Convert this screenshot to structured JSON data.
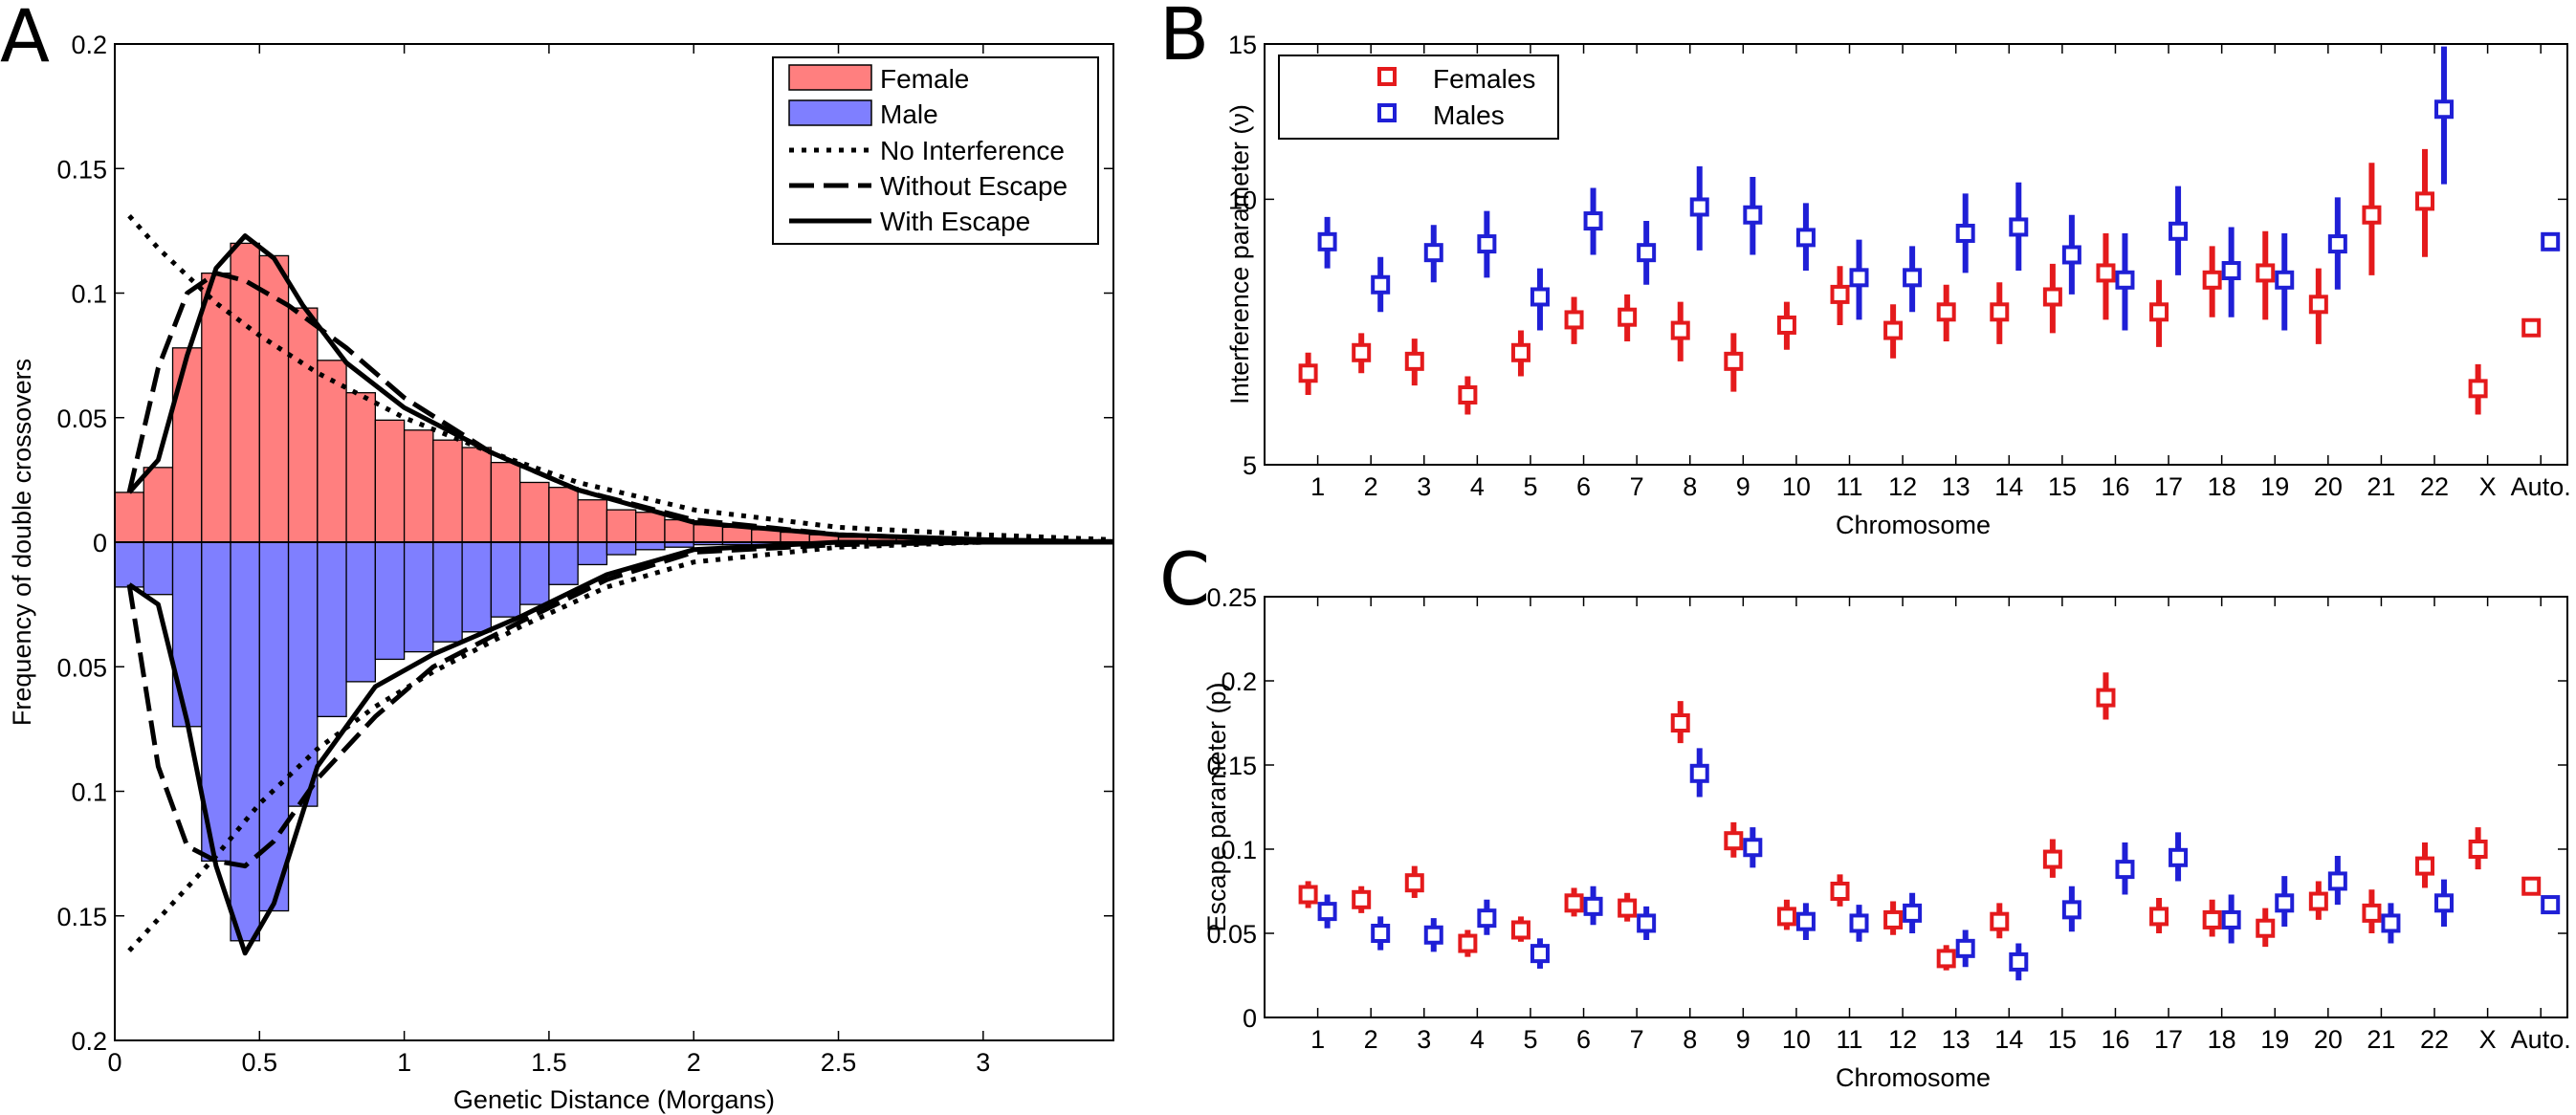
{
  "figure": {
    "panel_letters": [
      "A",
      "B",
      "C"
    ]
  },
  "chart_data": [
    {
      "panel": "A",
      "type": "bar",
      "xlabel": "Genetic Distance (Morgans)",
      "ylabel": "Frequency of double crossovers",
      "xlim": [
        0,
        3.45
      ],
      "ylim": [
        -0.2,
        0.2
      ],
      "xticks": [
        0,
        0.5,
        1,
        1.5,
        2,
        2.5,
        3
      ],
      "xtick_labels": [
        "0",
        "0.5",
        "1",
        "1.5",
        "2",
        "2.5",
        "3"
      ],
      "yticks": [
        0.2,
        0.15,
        0.1,
        0.05,
        0,
        -0.05,
        -0.1,
        -0.15,
        -0.2
      ],
      "ytick_labels": [
        "0.2",
        "0.15",
        "0.1",
        "0.05",
        "0",
        "0.05",
        "0.1",
        "0.15",
        "0.2"
      ],
      "grid": false,
      "legend_position": "top-right",
      "legend": [
        {
          "label": "Female",
          "kind": "patch",
          "color": "#ff7f7f"
        },
        {
          "label": "Male",
          "kind": "patch",
          "color": "#7f7fff"
        },
        {
          "label": "No Interference",
          "kind": "dotted"
        },
        {
          "label": "Without Escape",
          "kind": "dashed"
        },
        {
          "label": "With Escape",
          "kind": "solid"
        }
      ],
      "bin_width": 0.1,
      "bin_starts": [
        0,
        0.1,
        0.2,
        0.3,
        0.4,
        0.5,
        0.6,
        0.7,
        0.8,
        0.9,
        1.0,
        1.1,
        1.2,
        1.3,
        1.4,
        1.5,
        1.6,
        1.7,
        1.8,
        1.9,
        2.0,
        2.1,
        2.2,
        2.3,
        2.4,
        2.5,
        2.6,
        2.7,
        2.8,
        2.9,
        3.0,
        3.1,
        3.2,
        3.3,
        3.4
      ],
      "female_values": [
        0.02,
        0.03,
        0.078,
        0.108,
        0.12,
        0.115,
        0.094,
        0.073,
        0.06,
        0.049,
        0.045,
        0.041,
        0.038,
        0.032,
        0.024,
        0.022,
        0.017,
        0.013,
        0.012,
        0.009,
        0.007,
        0.006,
        0.005,
        0.004,
        0.003,
        0.002,
        0.002,
        0.002,
        0.001,
        0.001,
        0.001,
        0.001,
        0.001,
        0.001,
        0.001
      ],
      "male_values": [
        -0.018,
        -0.021,
        -0.074,
        -0.128,
        -0.16,
        -0.148,
        -0.106,
        -0.07,
        -0.056,
        -0.047,
        -0.044,
        -0.04,
        -0.036,
        -0.03,
        -0.025,
        -0.017,
        -0.009,
        -0.005,
        -0.003,
        -0.002,
        -0.001,
        -0.001,
        -0.001,
        0,
        0,
        0,
        0,
        0,
        0,
        0,
        0,
        0,
        0,
        0,
        0
      ],
      "curves": {
        "female_no_interference": {
          "x": [
            0.05,
            0.15,
            0.25,
            0.35,
            0.5,
            0.7,
            1.0,
            1.3,
            1.6,
            2.0,
            2.5,
            3.0,
            3.45
          ],
          "y": [
            0.131,
            0.118,
            0.107,
            0.096,
            0.083,
            0.068,
            0.05,
            0.036,
            0.024,
            0.013,
            0.006,
            0.003,
            0.001
          ]
        },
        "female_without_escape": {
          "x": [
            0.05,
            0.15,
            0.25,
            0.35,
            0.45,
            0.6,
            0.8,
            1.0,
            1.3,
            1.6,
            2.0,
            2.5,
            3.0,
            3.45
          ],
          "y": [
            0.02,
            0.07,
            0.1,
            0.108,
            0.105,
            0.095,
            0.078,
            0.058,
            0.036,
            0.021,
            0.009,
            0.003,
            0.001,
            0
          ]
        },
        "female_with_escape": {
          "x": [
            0.05,
            0.15,
            0.25,
            0.35,
            0.45,
            0.55,
            0.65,
            0.8,
            1.0,
            1.3,
            1.6,
            2.0,
            2.5,
            3.0,
            3.45
          ],
          "y": [
            0.02,
            0.033,
            0.075,
            0.11,
            0.123,
            0.114,
            0.095,
            0.072,
            0.054,
            0.036,
            0.021,
            0.008,
            0.003,
            0.001,
            0
          ]
        },
        "male_no_interference": {
          "x": [
            0.05,
            0.2,
            0.35,
            0.5,
            0.7,
            0.9,
            1.1,
            1.4,
            1.7,
            2.0,
            2.5,
            3.0,
            3.45
          ],
          "y": [
            -0.164,
            -0.145,
            -0.126,
            -0.105,
            -0.083,
            -0.066,
            -0.052,
            -0.034,
            -0.018,
            -0.008,
            -0.002,
            0,
            0
          ]
        },
        "male_without_escape": {
          "x": [
            0.05,
            0.15,
            0.25,
            0.35,
            0.45,
            0.55,
            0.7,
            0.9,
            1.1,
            1.4,
            1.7,
            2.0,
            2.5,
            3.0,
            3.45
          ],
          "y": [
            -0.017,
            -0.09,
            -0.122,
            -0.128,
            -0.13,
            -0.12,
            -0.095,
            -0.07,
            -0.05,
            -0.032,
            -0.015,
            -0.004,
            -0.001,
            0,
            0
          ]
        },
        "male_with_escape": {
          "x": [
            0.05,
            0.15,
            0.25,
            0.35,
            0.45,
            0.55,
            0.7,
            0.9,
            1.1,
            1.4,
            1.7,
            2.0,
            2.5,
            3.0,
            3.45
          ],
          "y": [
            -0.017,
            -0.025,
            -0.072,
            -0.13,
            -0.165,
            -0.145,
            -0.09,
            -0.058,
            -0.045,
            -0.03,
            -0.013,
            -0.003,
            0,
            0,
            0
          ]
        }
      }
    },
    {
      "panel": "B",
      "type": "scatter",
      "xlabel": "Chromosome",
      "ylabel": "Interference parameter (ν)",
      "yscale": "log",
      "ylim": [
        5,
        15
      ],
      "yticks": [
        5,
        10,
        15
      ],
      "ytick_labels": [
        "5",
        "10",
        "15"
      ],
      "categories": [
        "1",
        "2",
        "3",
        "4",
        "5",
        "6",
        "7",
        "8",
        "9",
        "10",
        "11",
        "12",
        "13",
        "14",
        "15",
        "16",
        "17",
        "18",
        "19",
        "20",
        "21",
        "22",
        "X",
        "Auto."
      ],
      "grid": false,
      "legend_position": "top-left",
      "series": [
        {
          "name": "Females",
          "color": "#e41a1c",
          "values": [
            6.35,
            6.7,
            6.55,
            6.0,
            6.7,
            7.3,
            7.35,
            7.1,
            6.55,
            7.2,
            7.8,
            7.1,
            7.45,
            7.45,
            7.75,
            8.25,
            7.45,
            8.1,
            8.25,
            7.6,
            9.6,
            9.95,
            6.1,
            7.15
          ],
          "lower": [
            6.0,
            6.35,
            6.15,
            5.7,
            6.3,
            6.85,
            6.9,
            6.55,
            6.05,
            6.75,
            7.2,
            6.6,
            6.9,
            6.85,
            7.05,
            7.3,
            6.8,
            7.35,
            7.3,
            6.85,
            8.2,
            8.6,
            5.7,
            7.0
          ],
          "upper": [
            6.7,
            7.05,
            6.95,
            6.3,
            7.1,
            7.75,
            7.8,
            7.65,
            7.05,
            7.65,
            8.4,
            7.6,
            8.0,
            8.05,
            8.45,
            9.15,
            8.1,
            8.85,
            9.2,
            8.35,
            11.0,
            11.4,
            6.5,
            7.3
          ]
        },
        {
          "name": "Males",
          "color": "#1f1fd6",
          "values": [
            8.95,
            8.0,
            8.7,
            8.9,
            7.75,
            9.45,
            8.7,
            9.8,
            9.6,
            9.05,
            8.15,
            8.15,
            9.15,
            9.3,
            8.65,
            8.1,
            9.2,
            8.3,
            8.1,
            8.9,
            null,
            12.65,
            null,
            8.95
          ],
          "lower": [
            8.35,
            7.45,
            8.05,
            8.15,
            7.1,
            8.65,
            8.0,
            8.75,
            8.65,
            8.3,
            7.3,
            7.45,
            8.25,
            8.3,
            7.8,
            7.1,
            8.2,
            7.35,
            7.1,
            7.9,
            null,
            10.4,
            null,
            8.8
          ],
          "upper": [
            9.55,
            8.6,
            9.35,
            9.7,
            8.35,
            10.3,
            9.45,
            10.9,
            10.6,
            9.9,
            9.0,
            8.85,
            10.15,
            10.45,
            9.6,
            9.15,
            10.35,
            9.3,
            9.15,
            10.05,
            null,
            14.9,
            null,
            9.1
          ]
        }
      ]
    },
    {
      "panel": "C",
      "type": "scatter",
      "xlabel": "Chromosome",
      "ylabel": "Escape parameter (p)",
      "ylim": [
        0,
        0.25
      ],
      "yticks": [
        0,
        0.05,
        0.1,
        0.15,
        0.2,
        0.25
      ],
      "ytick_labels": [
        "0",
        "0.05",
        "0.1",
        "0.15",
        "0.2",
        "0.25"
      ],
      "categories": [
        "1",
        "2",
        "3",
        "4",
        "5",
        "6",
        "7",
        "8",
        "9",
        "10",
        "11",
        "12",
        "13",
        "14",
        "15",
        "16",
        "17",
        "18",
        "19",
        "20",
        "21",
        "22",
        "X",
        "Auto."
      ],
      "grid": false,
      "series": [
        {
          "name": "Females",
          "color": "#e41a1c",
          "values": [
            0.073,
            0.07,
            0.08,
            0.044,
            0.052,
            0.068,
            0.065,
            0.175,
            0.105,
            0.06,
            0.075,
            0.058,
            0.035,
            0.057,
            0.094,
            0.19,
            0.06,
            0.058,
            0.053,
            0.069,
            0.062,
            0.09,
            0.1,
            0.078
          ],
          "lower": [
            0.065,
            0.062,
            0.071,
            0.036,
            0.045,
            0.06,
            0.057,
            0.163,
            0.095,
            0.052,
            0.066,
            0.049,
            0.028,
            0.047,
            0.083,
            0.177,
            0.05,
            0.048,
            0.042,
            0.058,
            0.05,
            0.077,
            0.088,
            0.074
          ],
          "upper": [
            0.081,
            0.078,
            0.09,
            0.052,
            0.06,
            0.077,
            0.074,
            0.188,
            0.116,
            0.07,
            0.085,
            0.069,
            0.043,
            0.068,
            0.106,
            0.205,
            0.071,
            0.07,
            0.065,
            0.081,
            0.076,
            0.104,
            0.113,
            0.082
          ]
        },
        {
          "name": "Males",
          "color": "#1f1fd6",
          "values": [
            0.063,
            0.05,
            0.049,
            0.059,
            0.038,
            0.066,
            0.056,
            0.145,
            0.101,
            0.057,
            0.056,
            0.062,
            0.041,
            0.033,
            0.064,
            0.088,
            0.095,
            0.058,
            0.068,
            0.081,
            0.056,
            0.068,
            null,
            0.067
          ],
          "lower": [
            0.053,
            0.04,
            0.039,
            0.049,
            0.029,
            0.055,
            0.046,
            0.131,
            0.089,
            0.046,
            0.045,
            0.05,
            0.03,
            0.022,
            0.051,
            0.073,
            0.081,
            0.044,
            0.054,
            0.067,
            0.044,
            0.054,
            null,
            0.063
          ],
          "upper": [
            0.073,
            0.06,
            0.059,
            0.07,
            0.047,
            0.078,
            0.066,
            0.16,
            0.113,
            0.068,
            0.067,
            0.074,
            0.052,
            0.044,
            0.078,
            0.104,
            0.11,
            0.073,
            0.084,
            0.096,
            0.068,
            0.082,
            null,
            0.071
          ]
        }
      ]
    }
  ]
}
